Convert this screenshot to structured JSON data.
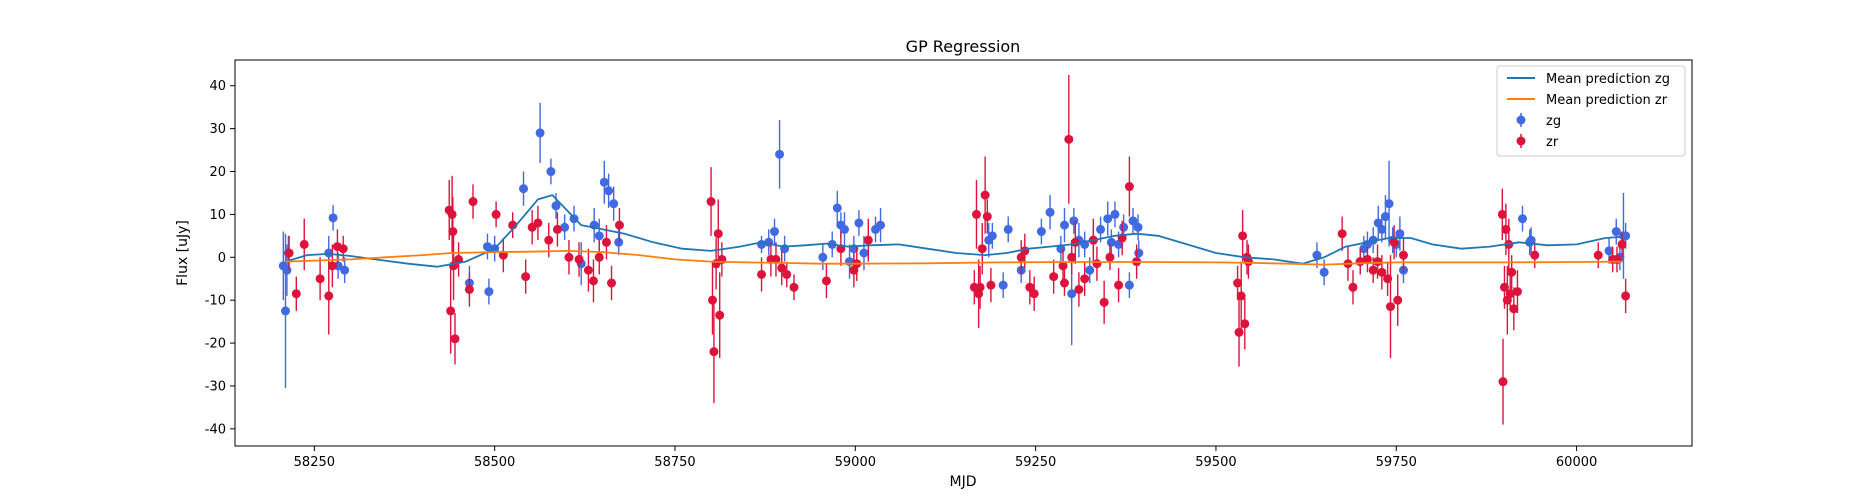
{
  "chart_data": {
    "type": "scatter",
    "title": "GP Regression",
    "xlabel": "MJD",
    "ylabel": "Flux [uJy]",
    "xlim": [
      58140,
      60160
    ],
    "ylim": [
      -44,
      46
    ],
    "x_ticks": [
      58250,
      58500,
      58750,
      59000,
      59250,
      59500,
      59750,
      60000
    ],
    "y_ticks": [
      -40,
      -30,
      -20,
      -10,
      0,
      10,
      20,
      30,
      40
    ],
    "grid": false,
    "legend_position": "top-right",
    "lines": [
      {
        "name": "Mean prediction zg",
        "color": "#1f77b4",
        "x": [
          58210,
          58240,
          58270,
          58300,
          58340,
          58380,
          58420,
          58460,
          58500,
          58530,
          58560,
          58580,
          58600,
          58620,
          58650,
          58680,
          58720,
          58760,
          58800,
          58840,
          58870,
          58900,
          58930,
          58960,
          58990,
          59020,
          59060,
          59100,
          59140,
          59180,
          59210,
          59240,
          59270,
          59300,
          59330,
          59360,
          59390,
          59420,
          59460,
          59500,
          59540,
          59580,
          59620,
          59650,
          59680,
          59710,
          59740,
          59770,
          59800,
          59840,
          59880,
          59920,
          59960,
          60000,
          60040,
          60065
        ],
        "y": [
          -1,
          0.5,
          0.8,
          0.3,
          -0.6,
          -1.5,
          -2.2,
          -1.0,
          2.0,
          7.5,
          13.5,
          14.5,
          11.0,
          7.5,
          6.5,
          5.5,
          3.5,
          2.0,
          1.5,
          2.5,
          3.5,
          2.5,
          2.8,
          3.2,
          2.5,
          2.8,
          3.0,
          2.0,
          1.0,
          0.5,
          1.0,
          2.0,
          2.5,
          3.0,
          4.0,
          5.0,
          5.5,
          5.0,
          3.0,
          1.0,
          0.0,
          -0.5,
          -1.5,
          0.0,
          2.5,
          3.5,
          4.5,
          4.5,
          3.0,
          2.0,
          2.5,
          3.5,
          2.8,
          3.0,
          4.5,
          4.8
        ]
      },
      {
        "name": "Mean prediction zr",
        "color": "#ff7f0e",
        "x": [
          58210,
          58300,
          58400,
          58440,
          58500,
          58550,
          58600,
          58650,
          58700,
          58750,
          58800,
          58850,
          58900,
          58950,
          59000,
          59100,
          59200,
          59300,
          59400,
          59500,
          59550,
          59600,
          59650,
          59700,
          59750,
          59800,
          59900,
          60000,
          60065
        ],
        "y": [
          -1,
          -0.5,
          0.5,
          1.0,
          1.2,
          1.3,
          1.5,
          1.2,
          0.5,
          -0.5,
          -1.0,
          -1.2,
          -1.3,
          -1.5,
          -1.5,
          -1.4,
          -1.2,
          -1.1,
          -1.1,
          -1.2,
          -1.3,
          -1.5,
          -1.7,
          -1.4,
          -1.2,
          -1.2,
          -1.2,
          -1.1,
          -1.0
        ]
      }
    ],
    "series": [
      {
        "name": "zg",
        "color": "#4169e1",
        "points": [
          [
            58207,
            -2,
            8
          ],
          [
            58210,
            -12.5,
            18
          ],
          [
            58212,
            -3,
            6
          ],
          [
            58214,
            1,
            4
          ],
          [
            58270,
            1,
            4
          ],
          [
            58276,
            9.2,
            3
          ],
          [
            58283,
            -2,
            3
          ],
          [
            58292,
            -3,
            3
          ],
          [
            58465,
            -6,
            4
          ],
          [
            58490,
            2.5,
            3
          ],
          [
            58492,
            -8,
            3
          ],
          [
            58500,
            2,
            3
          ],
          [
            58540,
            16,
            4
          ],
          [
            58563,
            29,
            7
          ],
          [
            58578,
            20,
            3
          ],
          [
            58585,
            12,
            3
          ],
          [
            58597,
            7,
            3
          ],
          [
            58610,
            9,
            3
          ],
          [
            58620,
            -1.5,
            5
          ],
          [
            58638,
            7.5,
            4
          ],
          [
            58645,
            5,
            4
          ],
          [
            58652,
            17.5,
            5
          ],
          [
            58658,
            15.5,
            4
          ],
          [
            58665,
            12.5,
            4
          ],
          [
            58672,
            3.5,
            3
          ],
          [
            58870,
            3,
            2
          ],
          [
            58880,
            3.5,
            3
          ],
          [
            58888,
            6,
            3
          ],
          [
            58895,
            24,
            8
          ],
          [
            58902,
            2,
            3
          ],
          [
            58955,
            0,
            3
          ],
          [
            58968,
            3,
            3
          ],
          [
            58975,
            11.5,
            4
          ],
          [
            58980,
            7.5,
            3
          ],
          [
            58985,
            6.5,
            4
          ],
          [
            58992,
            -1,
            4
          ],
          [
            58998,
            2,
            3
          ],
          [
            59005,
            8,
            3
          ],
          [
            59012,
            1,
            4
          ],
          [
            59028,
            6.5,
            3
          ],
          [
            59035,
            7.5,
            4
          ],
          [
            59185,
            4,
            4
          ],
          [
            59190,
            5,
            3
          ],
          [
            59205,
            -6.5,
            3
          ],
          [
            59212,
            6.5,
            3
          ],
          [
            59230,
            -3,
            3
          ],
          [
            59258,
            6,
            3
          ],
          [
            59270,
            10.5,
            4
          ],
          [
            59285,
            2,
            3
          ],
          [
            59290,
            7.5,
            4
          ],
          [
            59300,
            -8.5,
            12
          ],
          [
            59303,
            8.5,
            3
          ],
          [
            59310,
            4,
            4
          ],
          [
            59318,
            3,
            3
          ],
          [
            59325,
            -3,
            3
          ],
          [
            59330,
            4,
            3
          ],
          [
            59340,
            6.5,
            3
          ],
          [
            59350,
            9,
            4
          ],
          [
            59355,
            3.5,
            3
          ],
          [
            59360,
            10,
            3
          ],
          [
            59365,
            3,
            3
          ],
          [
            59372,
            7,
            3
          ],
          [
            59380,
            -6.5,
            3
          ],
          [
            59385,
            8.5,
            3
          ],
          [
            59392,
            7,
            3
          ],
          [
            59393,
            1,
            3
          ],
          [
            59640,
            0.5,
            3
          ],
          [
            59650,
            -3.5,
            3
          ],
          [
            59700,
            -1,
            3
          ],
          [
            59705,
            2,
            3
          ],
          [
            59710,
            3,
            3
          ],
          [
            59718,
            4,
            3
          ],
          [
            59725,
            8,
            4
          ],
          [
            59730,
            6.5,
            3
          ],
          [
            59735,
            9.5,
            5
          ],
          [
            59740,
            12.5,
            10
          ],
          [
            59745,
            4,
            3
          ],
          [
            59750,
            3,
            3
          ],
          [
            59755,
            5.5,
            4
          ],
          [
            59760,
            -3,
            3
          ],
          [
            59925,
            9,
            3
          ],
          [
            59935,
            3.5,
            3
          ],
          [
            59937,
            4,
            3
          ],
          [
            60045,
            1.5,
            3
          ],
          [
            60055,
            6,
            3
          ],
          [
            60060,
            0,
            3
          ],
          [
            60065,
            5,
            10
          ],
          [
            60068,
            5,
            3
          ]
        ]
      },
      {
        "name": "zr",
        "color": "#dc143c",
        "points": [
          [
            58215,
            1,
            4
          ],
          [
            58225,
            -8.5,
            4
          ],
          [
            58236,
            3,
            6
          ],
          [
            58258,
            -5,
            5
          ],
          [
            58270,
            -9,
            9
          ],
          [
            58275,
            -2,
            5
          ],
          [
            58282,
            2.5,
            4
          ],
          [
            58290,
            2,
            3
          ],
          [
            58437,
            11,
            7
          ],
          [
            58439,
            -12.5,
            10
          ],
          [
            58441,
            10,
            9
          ],
          [
            58442,
            6,
            8
          ],
          [
            58443,
            -2,
            8
          ],
          [
            58445,
            -19,
            6
          ],
          [
            58450,
            -0.5,
            4
          ],
          [
            58465,
            -7.5,
            4
          ],
          [
            58470,
            13,
            4
          ],
          [
            58502,
            10,
            3
          ],
          [
            58512,
            0.5,
            4
          ],
          [
            58525,
            7.5,
            3
          ],
          [
            58543,
            -4.5,
            4
          ],
          [
            58552,
            7,
            4
          ],
          [
            58560,
            8,
            4
          ],
          [
            58575,
            4,
            4
          ],
          [
            58587,
            6.5,
            4
          ],
          [
            58603,
            0,
            4
          ],
          [
            58617,
            -0.5,
            4
          ],
          [
            58630,
            -3,
            5
          ],
          [
            58637,
            -5.5,
            5
          ],
          [
            58645,
            0,
            4
          ],
          [
            58655,
            3.5,
            4
          ],
          [
            58662,
            -6,
            4
          ],
          [
            58673,
            7.5,
            4
          ],
          [
            58800,
            13,
            8
          ],
          [
            58802,
            -10,
            8
          ],
          [
            58804,
            -22,
            12
          ],
          [
            58807,
            -1.5,
            6
          ],
          [
            58810,
            5.5,
            8
          ],
          [
            58812,
            -13.5,
            10
          ],
          [
            58815,
            -0.5,
            4
          ],
          [
            58870,
            -4,
            4
          ],
          [
            58883,
            -0.5,
            4
          ],
          [
            58890,
            -0.5,
            4
          ],
          [
            58898,
            -2.5,
            4
          ],
          [
            58905,
            -4,
            3
          ],
          [
            58915,
            -7,
            3
          ],
          [
            58960,
            -5.5,
            4
          ],
          [
            58980,
            2,
            4
          ],
          [
            58998,
            -3,
            4
          ],
          [
            59002,
            -1.5,
            4
          ],
          [
            59018,
            4,
            5
          ],
          [
            59165,
            -7,
            4
          ],
          [
            59168,
            10,
            8
          ],
          [
            59171,
            -8.5,
            8
          ],
          [
            59173,
            -7,
            5
          ],
          [
            59176,
            2,
            6
          ],
          [
            59180,
            14.5,
            9
          ],
          [
            59183,
            9.5,
            4
          ],
          [
            59188,
            -6.5,
            4
          ],
          [
            59230,
            0,
            4
          ],
          [
            59235,
            1.5,
            4
          ],
          [
            59242,
            -7,
            4
          ],
          [
            59248,
            -8.5,
            4
          ],
          [
            59275,
            -4.5,
            4
          ],
          [
            59288,
            -2,
            4
          ],
          [
            59290,
            -6,
            3
          ],
          [
            59296,
            27.5,
            15
          ],
          [
            59300,
            0,
            4
          ],
          [
            59305,
            3.5,
            5
          ],
          [
            59310,
            -7.5,
            4
          ],
          [
            59318,
            -5,
            4
          ],
          [
            59330,
            4,
            5
          ],
          [
            59335,
            -1.5,
            4
          ],
          [
            59345,
            -10.5,
            5
          ],
          [
            59353,
            0,
            3
          ],
          [
            59365,
            -6.5,
            4
          ],
          [
            59370,
            4.5,
            4
          ],
          [
            59380,
            16.5,
            7
          ],
          [
            59390,
            -1,
            4
          ],
          [
            59530,
            -6,
            4
          ],
          [
            59532,
            -17.5,
            8
          ],
          [
            59535,
            -9,
            8
          ],
          [
            59537,
            5,
            6
          ],
          [
            59540,
            -15.5,
            6
          ],
          [
            59543,
            0,
            4
          ],
          [
            59545,
            -1,
            4
          ],
          [
            59675,
            5.5,
            4
          ],
          [
            59683,
            -1.5,
            4
          ],
          [
            59690,
            -7,
            4
          ],
          [
            59700,
            -1,
            3
          ],
          [
            59710,
            -0.5,
            3
          ],
          [
            59718,
            -3,
            3
          ],
          [
            59724,
            -1,
            4
          ],
          [
            59730,
            -3.5,
            4
          ],
          [
            59738,
            -5,
            4
          ],
          [
            59742,
            -11.5,
            12
          ],
          [
            59747,
            3.5,
            4
          ],
          [
            59752,
            -10,
            6
          ],
          [
            59760,
            0.5,
            4
          ],
          [
            59897,
            10,
            6
          ],
          [
            59898,
            -29,
            10
          ],
          [
            59900,
            -7,
            5
          ],
          [
            59902,
            6.5,
            6
          ],
          [
            59904,
            -10,
            8
          ],
          [
            59906,
            3,
            6
          ],
          [
            59908,
            -8.5,
            4
          ],
          [
            59910,
            -3.5,
            4
          ],
          [
            59913,
            -12,
            5
          ],
          [
            59918,
            -8,
            5
          ],
          [
            59942,
            0.5,
            3
          ],
          [
            60030,
            0.5,
            3
          ],
          [
            60050,
            -0.5,
            3
          ],
          [
            60056,
            -0.5,
            3
          ],
          [
            60063,
            3,
            3
          ],
          [
            60068,
            -9,
            4
          ]
        ]
      }
    ]
  }
}
